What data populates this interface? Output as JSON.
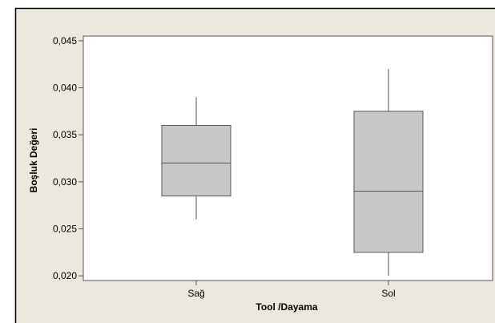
{
  "chart_data": {
    "type": "boxplot",
    "title": "",
    "xlabel": "Tool /Dayama",
    "ylabel": "Boşluk Değeri",
    "ylim": [
      0.0195,
      0.0455
    ],
    "yticks": [
      "0,020",
      "0,025",
      "0,030",
      "0,035",
      "0,040",
      "0,045"
    ],
    "categories": [
      "Sağ",
      "Sol"
    ],
    "boxes": [
      {
        "category": "Sağ",
        "min": 0.026,
        "q1": 0.0285,
        "median": 0.032,
        "q3": 0.036,
        "max": 0.039
      },
      {
        "category": "Sol",
        "min": 0.02,
        "q1": 0.0225,
        "median": 0.029,
        "q3": 0.0375,
        "max": 0.042
      }
    ],
    "grid": false,
    "legend": "none",
    "colors": {
      "outer_background": "#ede8dd",
      "plot_background": "#ffffff",
      "box_fill": "#c8c8c8",
      "box_stroke": "#555555",
      "whisker": "#555555"
    }
  }
}
